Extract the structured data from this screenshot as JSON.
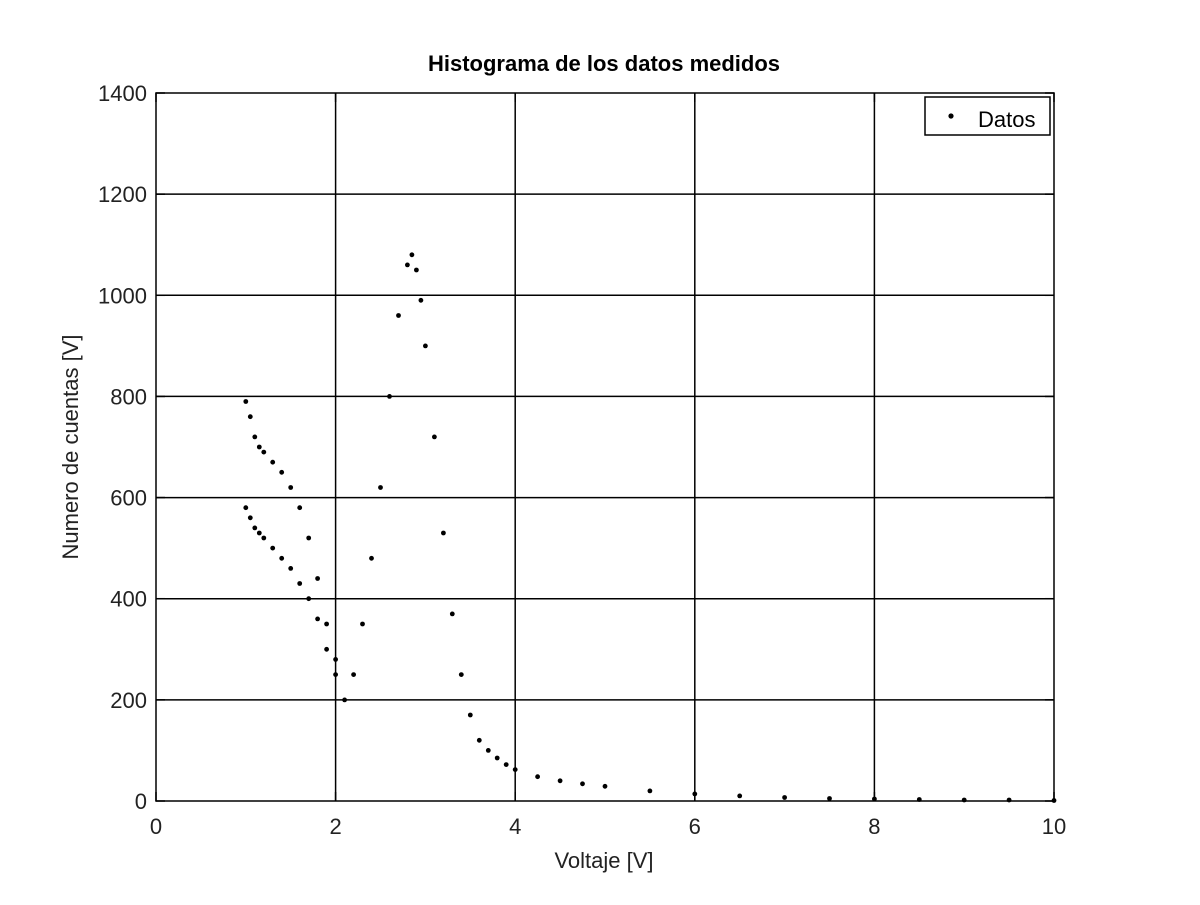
{
  "chart_data": {
    "type": "scatter",
    "title": "Histograma de los datos medidos",
    "xlabel": "Voltaje [V]",
    "ylabel": "Numero de cuentas [V]",
    "xlim": [
      0,
      10
    ],
    "ylim": [
      0,
      1400
    ],
    "xticks": [
      0,
      2,
      4,
      6,
      8,
      10
    ],
    "yticks": [
      0,
      200,
      400,
      600,
      800,
      1000,
      1200,
      1400
    ],
    "grid": true,
    "legend_position": "top-right",
    "marker_color": "#000000",
    "series": [
      {
        "name": "Datos",
        "x": [
          1.0,
          1.05,
          1.1,
          1.15,
          1.2,
          1.3,
          1.4,
          1.5,
          1.6,
          1.7,
          1.8,
          1.9,
          2.0,
          2.1,
          2.2,
          2.3,
          2.4,
          2.5,
          2.6,
          2.7,
          2.8,
          2.85,
          2.9,
          2.95,
          3.0,
          3.1,
          3.2,
          3.3,
          3.4,
          3.5,
          3.6,
          3.7,
          3.8,
          3.9,
          4.0,
          4.25,
          4.5,
          4.75,
          5.0,
          5.5,
          6.0,
          6.5,
          7.0,
          7.5,
          8.0,
          8.5,
          9.0,
          9.5,
          10.0
        ],
        "y": [
          580,
          560,
          540,
          530,
          520,
          500,
          480,
          460,
          430,
          400,
          360,
          300,
          250,
          200,
          250,
          350,
          480,
          620,
          800,
          960,
          1060,
          1080,
          1050,
          990,
          900,
          720,
          530,
          370,
          250,
          170,
          120,
          100,
          85,
          72,
          62,
          48,
          40,
          34,
          29,
          20,
          14,
          10,
          7,
          5,
          4,
          3,
          2,
          2,
          1
        ]
      },
      {
        "name": "",
        "x": [
          1.0,
          1.05,
          1.1,
          1.15,
          1.2,
          1.3,
          1.4,
          1.5,
          1.6,
          1.7,
          1.8,
          1.9,
          2.0
        ],
        "y": [
          790,
          760,
          720,
          700,
          690,
          670,
          650,
          620,
          580,
          520,
          440,
          350,
          280
        ]
      }
    ]
  }
}
